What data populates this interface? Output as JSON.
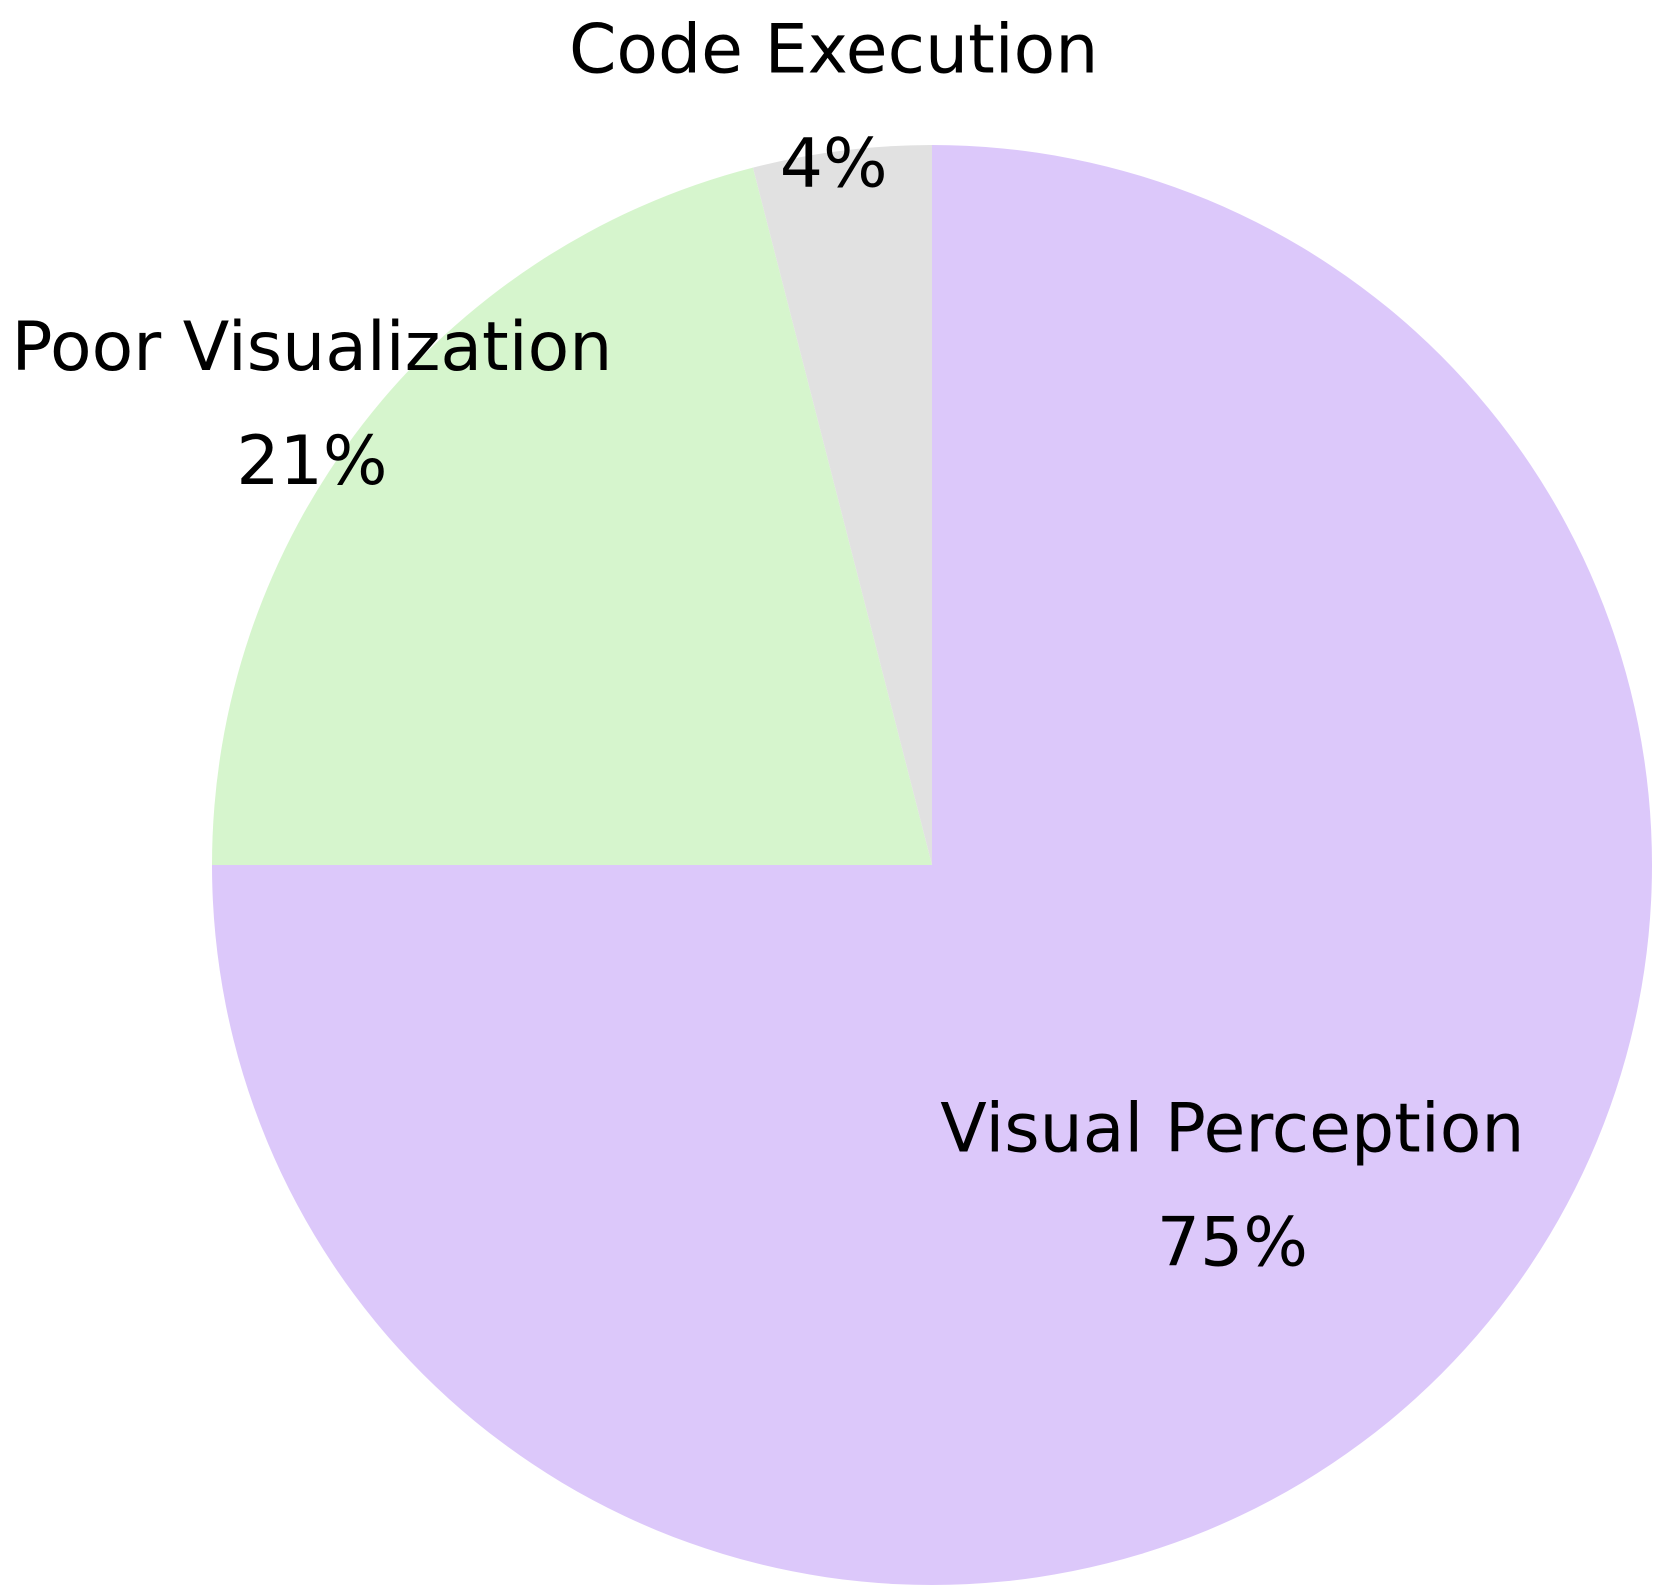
{
  "chart_data": {
    "type": "pie",
    "title": "",
    "start_angle_deg": 90,
    "direction": "clockwise",
    "slices": [
      {
        "label": "Visual Perception",
        "value": 75,
        "value_label": "75%",
        "color": "#dcc8fa"
      },
      {
        "label": "Poor Visualization",
        "value": 21,
        "value_label": "21%",
        "color": "#d6f5cd"
      },
      {
        "label": "Code Execution",
        "value": 4,
        "value_label": "4%",
        "color": "#e1e1e1"
      }
    ]
  }
}
